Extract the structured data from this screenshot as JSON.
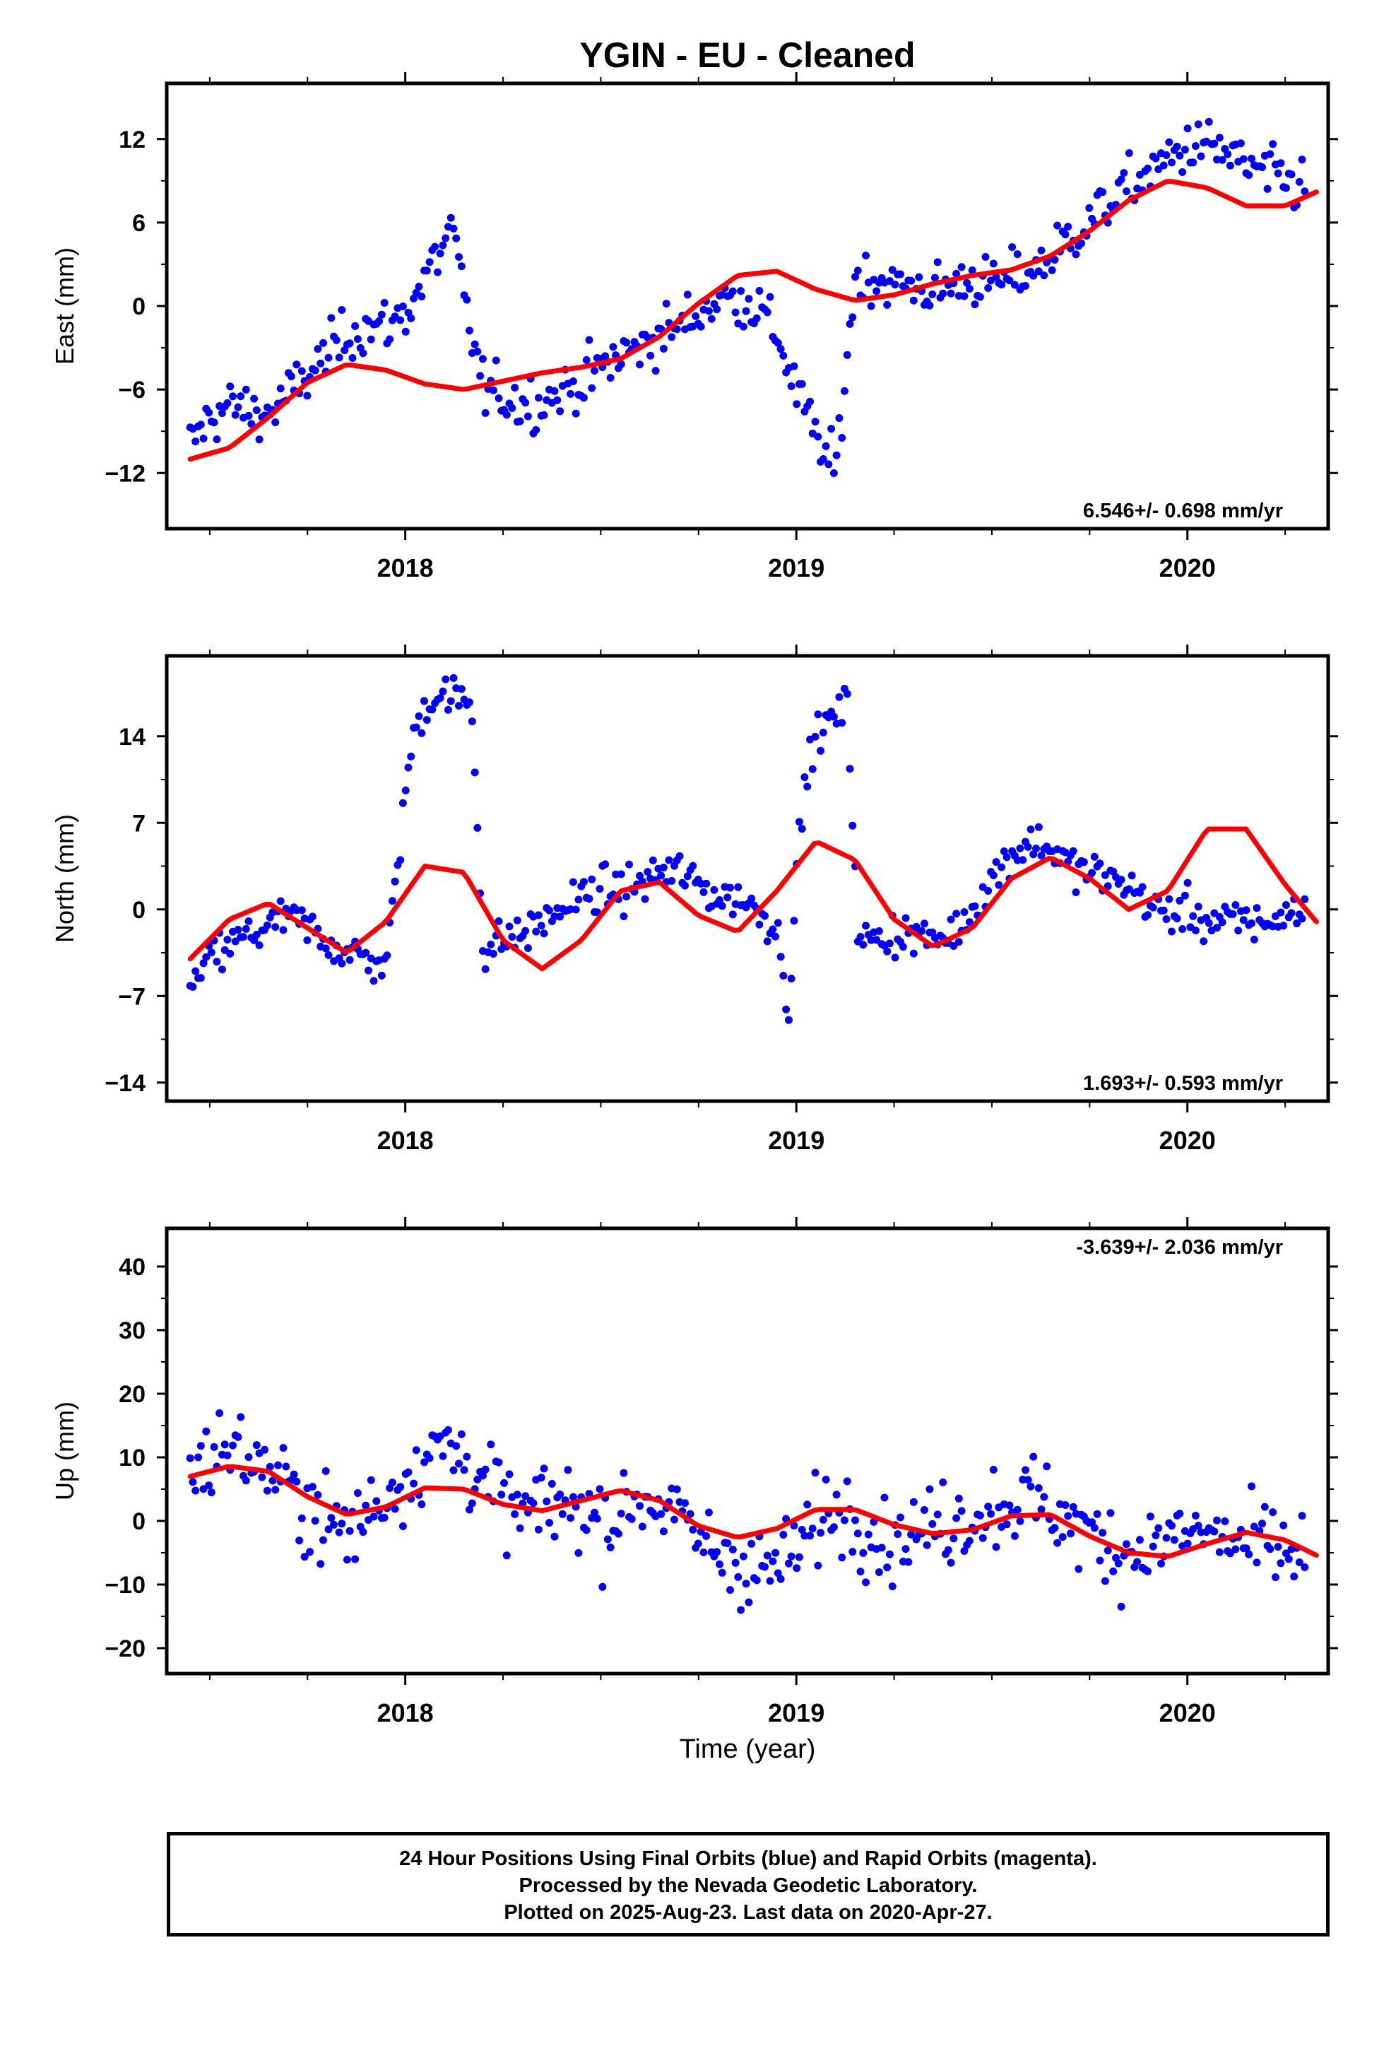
{
  "title": "YGIN  - EU - Cleaned",
  "colors": {
    "data": "#0000ff",
    "model": "#ff0000",
    "frame": "#000000"
  },
  "x_axis": {
    "label": "Time (year)",
    "range": [
      2017.39,
      2020.36
    ],
    "major_ticks": [
      2018,
      2019,
      2020
    ],
    "minor_ticks": [
      2017.5,
      2017.75,
      2018.25,
      2018.5,
      2018.75,
      2019.25,
      2019.5,
      2019.75,
      2020.25
    ]
  },
  "footer": {
    "line1": "24 Hour Positions Using Final Orbits (blue) and Rapid Orbits (magenta).",
    "line2": "Processed by the Nevada Geodetic Laboratory.",
    "line3": "Plotted on 2025-Aug-23. Last data on 2020-Apr-27."
  },
  "chart_data": [
    {
      "type": "scatter",
      "ylabel": "East (mm)",
      "ylim": [
        -16,
        16
      ],
      "yticks": [
        -12,
        -6,
        0,
        6,
        12
      ],
      "velocity_label": "6.546+/- 0.698 mm/yr",
      "velocity_position": "bottom-right",
      "series": [
        {
          "x": [
            2017.45,
            2017.5,
            2017.55,
            2017.6,
            2017.65,
            2017.7,
            2017.75,
            2017.8,
            2017.85,
            2017.9,
            2017.95,
            2018.0,
            2018.05,
            2018.1,
            2018.12,
            2018.15,
            2018.2,
            2018.25,
            2018.3,
            2018.35,
            2018.4,
            2018.45,
            2018.5,
            2018.55,
            2018.6,
            2018.65,
            2018.7,
            2018.75,
            2018.8,
            2018.85,
            2018.9,
            2018.95,
            2019.0,
            2019.05,
            2019.1,
            2019.15,
            2019.2,
            2019.25,
            2019.3,
            2019.35,
            2019.4,
            2019.45,
            2019.5,
            2019.55,
            2019.6,
            2019.65,
            2019.7,
            2019.75,
            2019.8,
            2019.85,
            2019.9,
            2019.95,
            2020.0,
            2020.05,
            2020.1,
            2020.15,
            2020.2,
            2020.25,
            2020.3
          ],
          "y": [
            -10.0,
            -8.0,
            -7.2,
            -7.5,
            -7.8,
            -6.5,
            -5.0,
            -3.5,
            -2.0,
            -1.5,
            -1.5,
            -0.5,
            2.0,
            4.5,
            5.5,
            0.5,
            -6.0,
            -6.5,
            -7.0,
            -6.8,
            -6.2,
            -5.5,
            -4.5,
            -3.5,
            -3.0,
            -2.0,
            -1.5,
            -0.5,
            0.5,
            0.5,
            0.0,
            -2.0,
            -6.0,
            -9.5,
            -12.0,
            2.0,
            2.0,
            1.5,
            1.5,
            1.0,
            1.5,
            2.0,
            1.5,
            2.0,
            2.5,
            3.5,
            5.0,
            6.0,
            7.5,
            8.5,
            9.5,
            10.5,
            11.5,
            11.5,
            11.0,
            10.0,
            9.5,
            9.0,
            8.5
          ],
          "spread": 1.6
        },
        {
          "name": "model",
          "x": [
            2017.45,
            2017.55,
            2017.65,
            2017.75,
            2017.85,
            2017.95,
            2018.05,
            2018.15,
            2018.25,
            2018.35,
            2018.45,
            2018.55,
            2018.65,
            2018.75,
            2018.85,
            2018.95,
            2019.05,
            2019.15,
            2019.25,
            2019.35,
            2019.45,
            2019.55,
            2019.65,
            2019.75,
            2019.85,
            2019.95,
            2020.05,
            2020.15,
            2020.25,
            2020.33
          ],
          "y": [
            -11.0,
            -10.2,
            -8.0,
            -5.5,
            -4.2,
            -4.6,
            -5.6,
            -6.0,
            -5.4,
            -4.8,
            -4.4,
            -3.8,
            -2.2,
            0.2,
            2.2,
            2.5,
            1.2,
            0.4,
            0.8,
            1.6,
            2.2,
            2.6,
            3.6,
            5.4,
            7.6,
            9.0,
            8.5,
            7.2,
            7.2,
            8.2
          ]
        }
      ]
    },
    {
      "type": "scatter",
      "ylabel": "North (mm)",
      "ylim": [
        -15.5,
        20.5
      ],
      "yticks": [
        -14,
        -7,
        0,
        7,
        14
      ],
      "velocity_label": "1.693+/- 0.593 mm/yr",
      "velocity_position": "bottom-right",
      "series": [
        {
          "x": [
            2017.45,
            2017.5,
            2017.55,
            2017.6,
            2017.65,
            2017.7,
            2017.75,
            2017.8,
            2017.85,
            2017.9,
            2017.95,
            2017.98,
            2018.0,
            2018.03,
            2018.06,
            2018.1,
            2018.14,
            2018.17,
            2018.2,
            2018.25,
            2018.3,
            2018.35,
            2018.4,
            2018.45,
            2018.5,
            2018.55,
            2018.6,
            2018.65,
            2018.7,
            2018.75,
            2018.8,
            2018.85,
            2018.9,
            2018.95,
            2018.98,
            2019.0,
            2019.03,
            2019.06,
            2019.1,
            2019.13,
            2019.16,
            2019.2,
            2019.25,
            2019.3,
            2019.35,
            2019.4,
            2019.45,
            2019.5,
            2019.55,
            2019.6,
            2019.65,
            2019.7,
            2019.75,
            2019.8,
            2019.85,
            2019.9,
            2019.95,
            2020.0,
            2020.05,
            2020.1,
            2020.15,
            2020.2,
            2020.25,
            2020.3
          ],
          "y": [
            -6.5,
            -4.0,
            -3.0,
            -2.0,
            -1.5,
            -0.5,
            -1.5,
            -2.5,
            -3.5,
            -4.0,
            -4.5,
            3.0,
            10.0,
            15.0,
            17.0,
            17.5,
            17.0,
            16.5,
            -3.5,
            -2.5,
            -2.0,
            -1.0,
            0.0,
            1.0,
            1.5,
            1.5,
            2.0,
            3.0,
            3.0,
            2.0,
            1.0,
            1.0,
            0.0,
            -1.5,
            -8.0,
            3.0,
            12.0,
            14.5,
            15.5,
            16.5,
            -2.5,
            -2.5,
            -2.0,
            -2.0,
            -2.5,
            -2.0,
            0.0,
            2.5,
            4.5,
            5.5,
            5.0,
            3.5,
            3.0,
            2.5,
            2.0,
            0.5,
            -0.5,
            0.0,
            -1.0,
            -1.0,
            -1.0,
            -1.0,
            -0.5,
            0.0
          ],
          "spread": 1.4
        },
        {
          "name": "model",
          "x": [
            2017.45,
            2017.55,
            2017.65,
            2017.75,
            2017.85,
            2017.95,
            2018.05,
            2018.15,
            2018.25,
            2018.35,
            2018.45,
            2018.55,
            2018.65,
            2018.75,
            2018.85,
            2018.95,
            2019.05,
            2019.15,
            2019.25,
            2019.35,
            2019.45,
            2019.55,
            2019.65,
            2019.75,
            2019.85,
            2019.95,
            2020.05,
            2020.15,
            2020.25,
            2020.33
          ],
          "y": [
            -4.0,
            -0.8,
            0.5,
            -1.5,
            -3.5,
            -1.0,
            3.5,
            3.0,
            -2.5,
            -4.8,
            -2.5,
            1.5,
            2.2,
            -0.5,
            -1.8,
            1.5,
            5.5,
            4.0,
            -0.8,
            -3.0,
            -1.5,
            2.5,
            4.2,
            2.5,
            0.0,
            1.5,
            6.5,
            6.5,
            2.0,
            -1.0
          ]
        }
      ]
    },
    {
      "type": "scatter",
      "ylabel": "Up (mm)",
      "xlabel": "Time (year)",
      "ylim": [
        -24,
        46
      ],
      "yticks": [
        -20,
        -10,
        0,
        10,
        20,
        30,
        40
      ],
      "velocity_label": "-3.639+/- 2.036 mm/yr",
      "velocity_position": "top-right",
      "series": [
        {
          "x": [
            2017.45,
            2017.5,
            2017.55,
            2017.6,
            2017.65,
            2017.7,
            2017.75,
            2017.8,
            2017.85,
            2017.9,
            2017.95,
            2018.0,
            2018.05,
            2018.1,
            2018.15,
            2018.2,
            2018.25,
            2018.3,
            2018.35,
            2018.4,
            2018.45,
            2018.5,
            2018.55,
            2018.6,
            2018.65,
            2018.7,
            2018.75,
            2018.8,
            2018.85,
            2018.9,
            2018.95,
            2019.0,
            2019.05,
            2019.1,
            2019.15,
            2019.2,
            2019.25,
            2019.3,
            2019.35,
            2019.4,
            2019.45,
            2019.5,
            2019.55,
            2019.6,
            2019.65,
            2019.7,
            2019.75,
            2019.8,
            2019.85,
            2019.9,
            2019.95,
            2020.0,
            2020.05,
            2020.1,
            2020.15,
            2020.2,
            2020.25,
            2020.3
          ],
          "y": [
            8,
            10,
            12,
            10,
            8,
            5,
            2,
            0,
            -2,
            1,
            4,
            7,
            10,
            12,
            10,
            6,
            3,
            1,
            2,
            3,
            2,
            0,
            1,
            4,
            3,
            0,
            -3,
            -5,
            -6,
            -8,
            -7,
            -5,
            0,
            2,
            1,
            -2,
            -3,
            -2,
            -1,
            0,
            1,
            2,
            3,
            4,
            2,
            0,
            -2,
            -4,
            -5,
            -4,
            -3,
            -2,
            -2,
            -3,
            -4,
            -4,
            -5,
            -5
          ],
          "spread": 5.5
        },
        {
          "name": "model",
          "x": [
            2017.45,
            2017.55,
            2017.65,
            2017.75,
            2017.85,
            2017.95,
            2018.05,
            2018.15,
            2018.25,
            2018.35,
            2018.45,
            2018.55,
            2018.65,
            2018.75,
            2018.85,
            2018.95,
            2019.05,
            2019.15,
            2019.25,
            2019.35,
            2019.45,
            2019.55,
            2019.65,
            2019.75,
            2019.85,
            2019.95,
            2020.05,
            2020.15,
            2020.25,
            2020.33
          ],
          "y": [
            7.0,
            8.6,
            7.8,
            3.8,
            1.0,
            2.2,
            5.2,
            5.0,
            2.6,
            1.6,
            3.2,
            4.8,
            3.2,
            -0.8,
            -2.6,
            -1.2,
            1.8,
            1.8,
            -0.6,
            -2.0,
            -1.4,
            0.8,
            1.0,
            -2.4,
            -5.0,
            -5.6,
            -3.6,
            -1.8,
            -3.0,
            -5.4
          ]
        }
      ]
    }
  ]
}
